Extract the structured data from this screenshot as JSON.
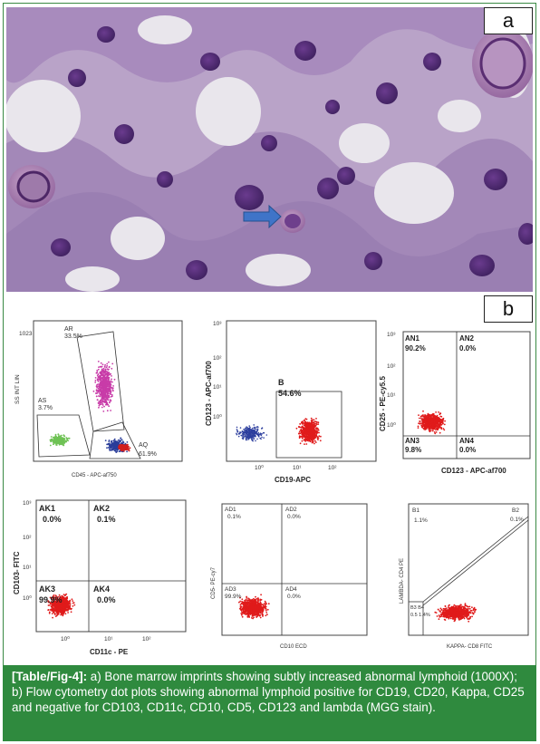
{
  "panel_labels": {
    "a": "a",
    "b": "b"
  },
  "caption": {
    "label": "[Table/Fig-4]:",
    "text": " a) Bone marrow imprints showing subtly increased abnormal lymphoid (1000X); b) Flow cytometry dot plots showing abnormal lymphoid positive for CD19, CD20, Kappa, CD25 and negative for CD103, CD11c, CD10, CD5, CD123 and lambda (MGG stain)."
  },
  "plots": {
    "p1": {
      "ylabel": "SS INT LIN",
      "xlabel": "CD45 - APC-af750",
      "ytick_top": "1023",
      "gates": {
        "AR": "AR",
        "AR_val": "33.5%",
        "AS": "AS",
        "AS_val": "3.7%",
        "AQ": "AQ",
        "AQ_val": "61.9%"
      }
    },
    "p2": {
      "ylabel": "CD123 - APC-af700",
      "xlabel": "CD19-APC",
      "yticks": [
        "10³",
        "10²",
        "10¹",
        "10⁰"
      ],
      "xticks": [
        "10⁰",
        "10¹",
        "10²"
      ],
      "gate": "B",
      "gate_val": "54.6%"
    },
    "p3": {
      "ylabel": "CD25 - PE-cy5.5",
      "xlabel": "CD123 - APC-af700",
      "yticks": [
        "10³",
        "10²",
        "10¹",
        "10⁰"
      ],
      "quads": [
        {
          "name": "AN1",
          "val": "90.2%"
        },
        {
          "name": "AN2",
          "val": "0.0%"
        },
        {
          "name": "AN3",
          "val": "9.8%"
        },
        {
          "name": "AN4",
          "val": "0.0%"
        }
      ]
    },
    "p4": {
      "ylabel": "CD103- FITC",
      "xlabel": "CD11c - PE",
      "yticks": [
        "10³",
        "10²",
        "10¹",
        "10⁰"
      ],
      "xticks": [
        "10⁰",
        "10¹",
        "10²"
      ],
      "quads": [
        {
          "name": "AK1",
          "val": "0.0%"
        },
        {
          "name": "AK2",
          "val": "0.1%"
        },
        {
          "name": "AK3",
          "val": "99.9%"
        },
        {
          "name": "AK4",
          "val": "0.0%"
        }
      ]
    },
    "p5": {
      "ylabel": "CD5- PE-cy7",
      "xlabel": "CD10 ECD",
      "quads": [
        {
          "name": "AD1",
          "val": "0.1%"
        },
        {
          "name": "AD2",
          "val": "0.0%"
        },
        {
          "name": "AD3",
          "val": "99.9%"
        },
        {
          "name": "AD4",
          "val": "0.0%"
        }
      ]
    },
    "p6": {
      "ylabel": "LAMBDA- CD4 PE",
      "xlabel": "KAPPA- CD8 FITC",
      "quads": [
        {
          "name": "B1",
          "val": "1.1%"
        },
        {
          "name": "B2",
          "val": "0.1%"
        },
        {
          "name": "B3 B4",
          "val": "0.5 1.4%"
        }
      ]
    }
  }
}
